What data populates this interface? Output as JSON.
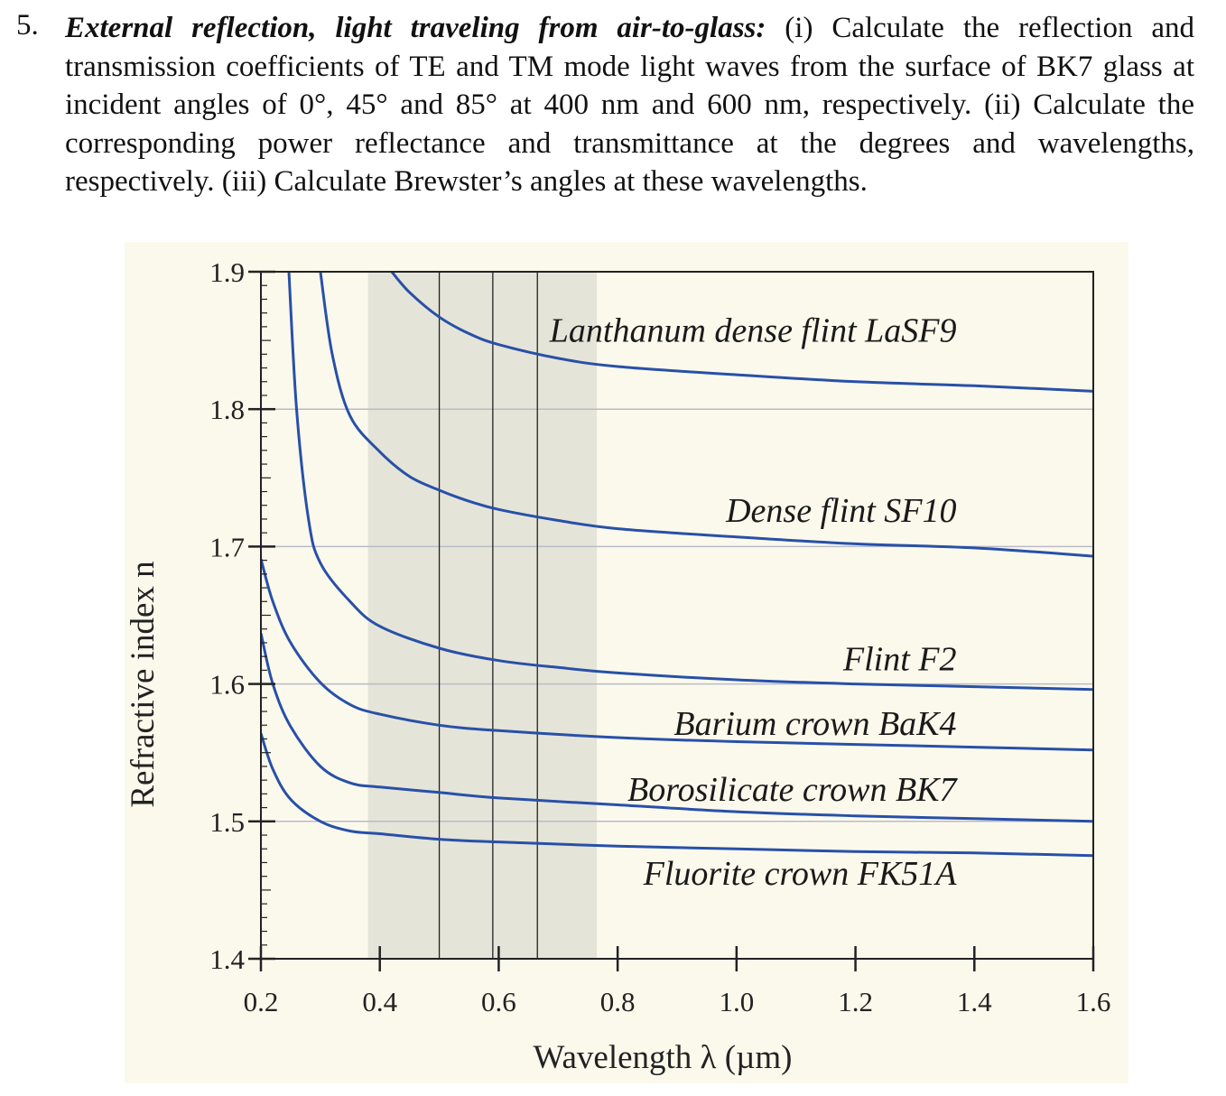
{
  "problem": {
    "number": "5.",
    "lead": "External reflection, light traveling from air-to-glass:",
    "body": " (i) Calculate the reflection and transmission coefficients of TE and TM mode light waves from the surface of BK7 glass at incident angles of 0°, 45° and 85° at 400 nm and 600 nm, respectively. (ii) Calculate the corresponding power reflectance and transmittance at the degrees and wavelengths, respectively. (iii) Calculate Brewster’s angles at these wavelengths."
  },
  "colors": {
    "panel_bg": "#fbf9ec",
    "visible_band": "#e5e4d8",
    "curve": "#2850a8",
    "grid": "#b8bcc8",
    "axis": "#222222"
  },
  "chart_data": {
    "type": "line",
    "title": "",
    "xlabel": "Wavelength λ (µm)",
    "ylabel": "Refractive index n",
    "xlim": [
      0.2,
      1.6
    ],
    "ylim": [
      1.4,
      1.9
    ],
    "x_ticks": [
      "0.2",
      "0.4",
      "0.6",
      "0.8",
      "1.0",
      "1.2",
      "1.4",
      "1.6"
    ],
    "y_ticks": [
      "1.4",
      "1.5",
      "1.6",
      "1.7",
      "1.8",
      "1.9"
    ],
    "x_tick_values": [
      0.2,
      0.4,
      0.6,
      0.8,
      1.0,
      1.2,
      1.4,
      1.6
    ],
    "y_tick_values": [
      1.4,
      1.5,
      1.6,
      1.7,
      1.8,
      1.9
    ],
    "y_gridlines": [
      1.5,
      1.6,
      1.7,
      1.8
    ],
    "visible_band": [
      0.38,
      0.765
    ],
    "vertical_lines": [
      0.5,
      0.59,
      0.665
    ],
    "series": [
      {
        "name": "Lanthanum dense flint LaSF9",
        "label_at": [
          1.37,
          1.849
        ],
        "points": [
          [
            0.42,
            1.9
          ],
          [
            0.45,
            1.885
          ],
          [
            0.5,
            1.867
          ],
          [
            0.55,
            1.855
          ],
          [
            0.6,
            1.847
          ],
          [
            0.7,
            1.837
          ],
          [
            0.8,
            1.831
          ],
          [
            1.0,
            1.825
          ],
          [
            1.2,
            1.82
          ],
          [
            1.4,
            1.817
          ],
          [
            1.6,
            1.813
          ]
        ]
      },
      {
        "name": "Dense flint SF10",
        "label_at": [
          1.37,
          1.718
        ],
        "points": [
          [
            0.3,
            1.9
          ],
          [
            0.32,
            1.84
          ],
          [
            0.35,
            1.795
          ],
          [
            0.4,
            1.769
          ],
          [
            0.45,
            1.751
          ],
          [
            0.5,
            1.741
          ],
          [
            0.55,
            1.733
          ],
          [
            0.6,
            1.727
          ],
          [
            0.7,
            1.719
          ],
          [
            0.8,
            1.713
          ],
          [
            1.0,
            1.707
          ],
          [
            1.2,
            1.702
          ],
          [
            1.4,
            1.699
          ],
          [
            1.6,
            1.693
          ]
        ]
      },
      {
        "name": "Flint F2",
        "label_at": [
          1.37,
          1.61
        ],
        "points": [
          [
            0.247,
            1.9
          ],
          [
            0.26,
            1.8
          ],
          [
            0.28,
            1.72
          ],
          [
            0.3,
            1.688
          ],
          [
            0.35,
            1.66
          ],
          [
            0.4,
            1.642
          ],
          [
            0.5,
            1.626
          ],
          [
            0.6,
            1.617
          ],
          [
            0.7,
            1.612
          ],
          [
            0.8,
            1.608
          ],
          [
            1.0,
            1.603
          ],
          [
            1.2,
            1.6
          ],
          [
            1.4,
            1.598
          ],
          [
            1.6,
            1.596
          ]
        ]
      },
      {
        "name": "Barium crown BaK4",
        "label_at": [
          1.37,
          1.563
        ],
        "points": [
          [
            0.2,
            1.691
          ],
          [
            0.22,
            1.66
          ],
          [
            0.25,
            1.63
          ],
          [
            0.3,
            1.601
          ],
          [
            0.35,
            1.585
          ],
          [
            0.4,
            1.578
          ],
          [
            0.5,
            1.57
          ],
          [
            0.6,
            1.566
          ],
          [
            0.8,
            1.561
          ],
          [
            1.0,
            1.558
          ],
          [
            1.2,
            1.556
          ],
          [
            1.4,
            1.554
          ],
          [
            1.6,
            1.552
          ]
        ]
      },
      {
        "name": "Borosilicate crown BK7",
        "label_at": [
          1.37,
          1.515
        ],
        "points": [
          [
            0.2,
            1.637
          ],
          [
            0.22,
            1.6
          ],
          [
            0.25,
            1.569
          ],
          [
            0.3,
            1.54
          ],
          [
            0.35,
            1.528
          ],
          [
            0.4,
            1.525
          ],
          [
            0.5,
            1.521
          ],
          [
            0.6,
            1.517
          ],
          [
            0.8,
            1.512
          ],
          [
            1.0,
            1.507
          ],
          [
            1.2,
            1.504
          ],
          [
            1.4,
            1.502
          ],
          [
            1.6,
            1.5
          ]
        ]
      },
      {
        "name": "Fluorite crown FK51A",
        "label_at": [
          1.37,
          1.454
        ],
        "points": [
          [
            0.2,
            1.564
          ],
          [
            0.22,
            1.538
          ],
          [
            0.25,
            1.516
          ],
          [
            0.3,
            1.5
          ],
          [
            0.35,
            1.493
          ],
          [
            0.4,
            1.491
          ],
          [
            0.5,
            1.487
          ],
          [
            0.6,
            1.485
          ],
          [
            0.8,
            1.482
          ],
          [
            1.0,
            1.48
          ],
          [
            1.2,
            1.478
          ],
          [
            1.4,
            1.477
          ],
          [
            1.6,
            1.475
          ]
        ]
      }
    ]
  }
}
